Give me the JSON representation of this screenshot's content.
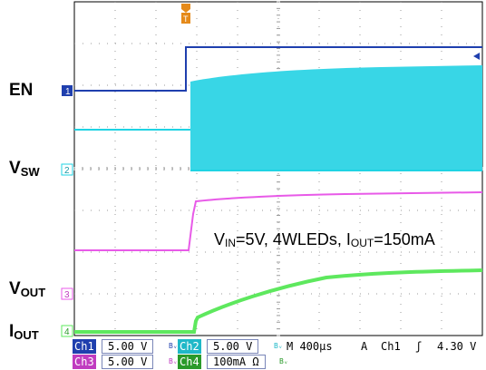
{
  "traces": {
    "ch1": {
      "name": "EN",
      "marker": "1",
      "color": "#1f3fae"
    },
    "ch2": {
      "name_main": "V",
      "name_sub": "SW",
      "marker": "2",
      "color": "#1fd3e3"
    },
    "ch3": {
      "name_main": "V",
      "name_sub": "OUT",
      "marker": "3",
      "color": "#e85ae8"
    },
    "ch4": {
      "name_main": "I",
      "name_sub": "OUT",
      "marker": "4",
      "color": "#5ee85e"
    }
  },
  "trigger_marker": "T",
  "annotation": {
    "v": "V",
    "v_sub": "IN",
    "mid": "=5V, 4WLEDs, I",
    "i_sub": "OUT",
    "end": "=150mA"
  },
  "status": {
    "ch1_tag": "Ch1",
    "ch1_scale": "5.00 V",
    "ch2_tag": "Ch2",
    "ch2_scale": "5.00 V",
    "timebase": "M 400µs",
    "trig_mode": "A",
    "trig_src": "Ch1",
    "trig_slope": "ʃ",
    "trig_level": "4.30 V",
    "ch3_tag": "Ch3",
    "ch3_scale": "5.00 V",
    "ch4_tag": "Ch4",
    "ch4_scale": "100mA Ω",
    "bw_symbol": "Bᵥ"
  },
  "colors": {
    "tag_bg": "#1f3fae",
    "grid": "#9a9a9a"
  }
}
